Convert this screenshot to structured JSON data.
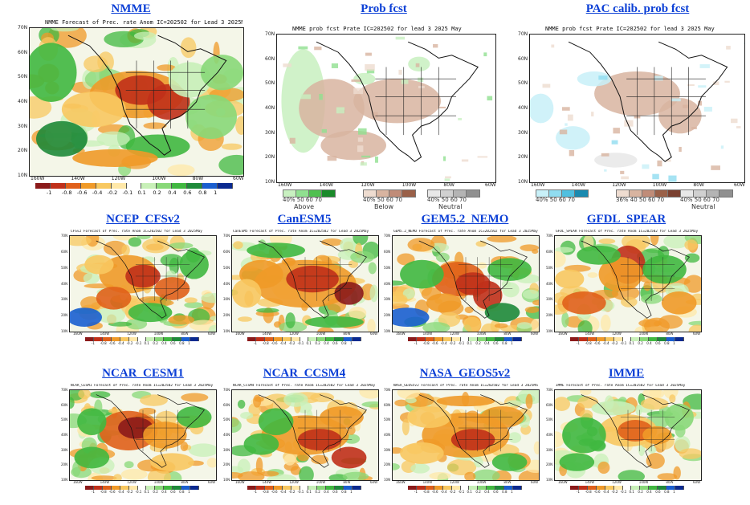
{
  "titles": {
    "nmme": "NMME",
    "prob": "Prob fcst",
    "pac": "PAC calib. prob fcst",
    "cfsv2": "NCEP_CFSv2",
    "canesm5": "CanESM5",
    "gem": "GEM5.2_NEMO",
    "gfdl": "GFDL_SPEAR",
    "cesm1": "NCAR_CESM1",
    "ccsm4": "NCAR_CCSM4",
    "geos": "NASA_GEOS5v2",
    "imme": "IMME"
  },
  "map_titles": {
    "nmme": "NMME Forecast of Prec. rate Anom IC=202502 for Lead 3 2025May",
    "prob": "NMME prob fcst Prate IC=202502 for lead 3 2025 May",
    "pac": "NMME prob fcst Prate IC=202502 for lead 3 2025 May",
    "cfsv2": "CFSv2 Forecast of Prec. rate Anom IC=202502 for Lead 3 2025May",
    "canesm5": "CanESM5 Forecast of Prec. rate Anom IC=202502 for Lead 3 2025May",
    "gem": "GEM5.2_NEMO Forecast of Prec. rate Anom IC=202502 for Lead 3 2025May",
    "gfdl": "GFDL_SPEAR Forecast of Prec. rate Anom IC=202502 for Lead 3 2025May",
    "cesm1": "NCAR_CESM1 Forecast of Prec. rate Anom IC=202502 for Lead 3 2025May",
    "ccsm4": "NCAR_CCSM4 Forecast of Prec. rate Anom IC=202502 for Lead 3 2025May",
    "geos": "NASA_GEOS5v2 Forecast of Prec. rate Anom IC=202502 for Lead 3 2025May",
    "imme": "IMME Forecast of Prec. rate Anom IC=202502 for Lead 3 2025May"
  },
  "lat_labels": [
    "70N",
    "60N",
    "50N",
    "40N",
    "30N",
    "20N",
    "10N"
  ],
  "lon_labels": [
    "160W",
    "140W",
    "120W",
    "100W",
    "80W",
    "60W"
  ],
  "anom_colorbar": {
    "ticks": [
      "-1",
      "-0.8",
      "-0.6",
      "-0.4",
      "-0.2",
      "-0.1",
      "0.1",
      "0.2",
      "0.4",
      "0.6",
      "0.8",
      "1"
    ],
    "colors": [
      "#8b1a1a",
      "#c0301a",
      "#e0601a",
      "#f09a28",
      "#f8c860",
      "#ffe8a8",
      "#ffffff",
      "#c8f0b8",
      "#88d878",
      "#40b840",
      "#1e8a3a",
      "#1a5fd0",
      "#0a2a90"
    ]
  },
  "prob_legend": {
    "above": {
      "label": "Above",
      "ticks": [
        "40%",
        "50",
        "60",
        "70"
      ],
      "colors": [
        "#c8f0c0",
        "#90e090",
        "#50c050",
        "#1a8a2a"
      ]
    },
    "below": {
      "label": "Below",
      "ticks": [
        "40%",
        "50",
        "60",
        "70"
      ],
      "colors": [
        "#eedcd0",
        "#d8b4a0",
        "#c08c78",
        "#9a6048"
      ]
    },
    "neutral": {
      "label": "Neutral",
      "ticks": [
        "40%",
        "50",
        "60",
        "70"
      ],
      "colors": [
        "#e8e8e8",
        "#d0d0d0",
        "#b4b4b4",
        "#909090"
      ]
    }
  },
  "pac_legend": {
    "above": {
      "ticks": [
        "40%",
        "50",
        "60",
        "70"
      ],
      "colors": [
        "#c8f0f8",
        "#90dcf0",
        "#50c0e0",
        "#1a8ab0"
      ]
    },
    "below": {
      "ticks": [
        "36%",
        "40",
        "50",
        "60",
        "70"
      ],
      "colors": [
        "#eedcd0",
        "#d8b4a0",
        "#c08c78",
        "#9a6048",
        "#7a4030"
      ]
    },
    "neutral": {
      "label": "Neutral",
      "ticks": [
        "40%",
        "50",
        "60",
        "70"
      ],
      "colors": [
        "#e8e8e8",
        "#d0d0d0",
        "#b4b4b4",
        "#909090"
      ]
    }
  }
}
